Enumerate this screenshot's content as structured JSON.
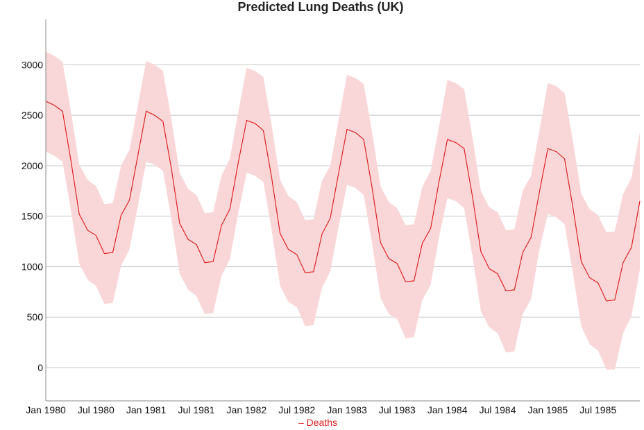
{
  "chart_data": {
    "type": "line",
    "title": "Predicted Lung Deaths (UK)",
    "xlabel": "",
    "ylabel": "",
    "ylim": [
      -330,
      3450
    ],
    "xlim": [
      "1980-01",
      "1985-12"
    ],
    "yticks": [
      0,
      500,
      1000,
      1500,
      2000,
      2500,
      3000
    ],
    "xticks": [
      {
        "date": "1980-01",
        "label": "Jan 1980"
      },
      {
        "date": "1980-07",
        "label": "Jul 1980"
      },
      {
        "date": "1981-01",
        "label": "Jan 1981"
      },
      {
        "date": "1981-07",
        "label": "Jul 1981"
      },
      {
        "date": "1982-01",
        "label": "Jan 1982"
      },
      {
        "date": "1982-07",
        "label": "Jul 1982"
      },
      {
        "date": "1983-01",
        "label": "Jan 1983"
      },
      {
        "date": "1983-07",
        "label": "Jul 1983"
      },
      {
        "date": "1984-01",
        "label": "Jan 1984"
      },
      {
        "date": "1984-07",
        "label": "Jul 1984"
      },
      {
        "date": "1985-01",
        "label": "Jan 1985"
      },
      {
        "date": "1985-07",
        "label": "Jul 1985"
      }
    ],
    "grid": "horizontal",
    "legend_position": "bottom",
    "colors": {
      "line": "#dd2222",
      "band": "#f9d7d8",
      "grid": "#c8c8c8",
      "axis": "#888888"
    },
    "x": [
      "1980-01",
      "1980-02",
      "1980-03",
      "1980-04",
      "1980-05",
      "1980-06",
      "1980-07",
      "1980-08",
      "1980-09",
      "1980-10",
      "1980-11",
      "1980-12",
      "1981-01",
      "1981-02",
      "1981-03",
      "1981-04",
      "1981-05",
      "1981-06",
      "1981-07",
      "1981-08",
      "1981-09",
      "1981-10",
      "1981-11",
      "1981-12",
      "1982-01",
      "1982-02",
      "1982-03",
      "1982-04",
      "1982-05",
      "1982-06",
      "1982-07",
      "1982-08",
      "1982-09",
      "1982-10",
      "1982-11",
      "1982-12",
      "1983-01",
      "1983-02",
      "1983-03",
      "1983-04",
      "1983-05",
      "1983-06",
      "1983-07",
      "1983-08",
      "1983-09",
      "1983-10",
      "1983-11",
      "1983-12",
      "1984-01",
      "1984-02",
      "1984-03",
      "1984-04",
      "1984-05",
      "1984-06",
      "1984-07",
      "1984-08",
      "1984-09",
      "1984-10",
      "1984-11",
      "1984-12",
      "1985-01",
      "1985-02",
      "1985-03",
      "1985-04",
      "1985-05",
      "1985-06",
      "1985-07",
      "1985-08",
      "1985-09",
      "1985-10",
      "1985-11",
      "1985-12"
    ],
    "series": [
      {
        "name": "Deaths",
        "values": [
          2640,
          2600,
          2540,
          2050,
          1520,
          1360,
          1310,
          1130,
          1140,
          1510,
          1660,
          2100,
          2540,
          2500,
          2440,
          1980,
          1430,
          1270,
          1220,
          1040,
          1050,
          1410,
          1570,
          2030,
          2450,
          2420,
          2350,
          1880,
          1330,
          1170,
          1120,
          940,
          950,
          1320,
          1480,
          1930,
          2360,
          2330,
          2260,
          1780,
          1240,
          1080,
          1030,
          850,
          860,
          1230,
          1380,
          1840,
          2260,
          2230,
          2170,
          1690,
          1150,
          980,
          930,
          760,
          770,
          1140,
          1290,
          1740,
          2170,
          2140,
          2070,
          1590,
          1050,
          890,
          840,
          660,
          670,
          1040,
          1190,
          1650
        ],
        "lower": [
          2140,
          2100,
          2040,
          1560,
          1030,
          870,
          810,
          630,
          640,
          1010,
          1170,
          1600,
          2040,
          2010,
          1950,
          1480,
          930,
          770,
          710,
          530,
          540,
          910,
          1070,
          1530,
          1930,
          1900,
          1840,
          1360,
          810,
          650,
          600,
          410,
          420,
          790,
          950,
          1400,
          1810,
          1780,
          1710,
          1230,
          690,
          530,
          480,
          290,
          300,
          670,
          820,
          1290,
          1680,
          1650,
          1580,
          1100,
          560,
          400,
          340,
          150,
          160,
          530,
          680,
          1170,
          1520,
          1490,
          1420,
          940,
          410,
          230,
          170,
          -20,
          -20,
          340,
          510,
          970
        ],
        "upper": [
          3130,
          3090,
          3030,
          2540,
          2010,
          1860,
          1800,
          1620,
          1630,
          2000,
          2160,
          2600,
          3040,
          3000,
          2940,
          2470,
          1930,
          1770,
          1710,
          1530,
          1540,
          1900,
          2070,
          2530,
          2970,
          2940,
          2880,
          2400,
          1860,
          1700,
          1640,
          1460,
          1470,
          1850,
          2000,
          2460,
          2900,
          2870,
          2810,
          2330,
          1800,
          1640,
          1580,
          1410,
          1420,
          1790,
          1950,
          2390,
          2850,
          2820,
          2760,
          2280,
          1750,
          1590,
          1540,
          1360,
          1370,
          1750,
          1900,
          2350,
          2820,
          2790,
          2720,
          2250,
          1720,
          1570,
          1510,
          1340,
          1350,
          1720,
          1880,
          2330
        ]
      }
    ]
  },
  "legend": {
    "text": "– Deaths"
  }
}
